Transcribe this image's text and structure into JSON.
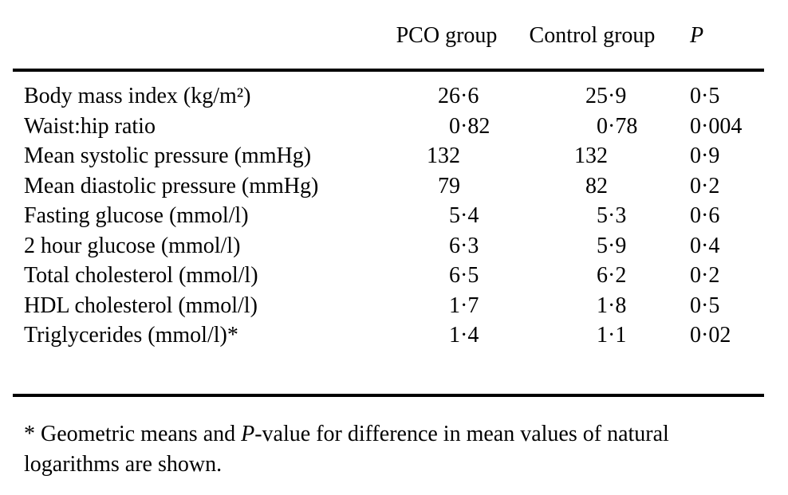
{
  "table": {
    "headers": {
      "pco": "PCO group",
      "ctrl": "Control group",
      "p": "P"
    },
    "rows": [
      {
        "label": "Body mass index (kg/m²)",
        "pco": {
          "int": "26",
          "frac": "·6"
        },
        "ctrl": {
          "int": "25",
          "frac": "·9"
        },
        "p": "0·5"
      },
      {
        "label": "Waist:hip ratio",
        "pco": {
          "int": "0",
          "frac": "·82"
        },
        "ctrl": {
          "int": "0",
          "frac": "·78"
        },
        "p": "0·004"
      },
      {
        "label": "Mean systolic pressure (mmHg)",
        "pco": {
          "int": "132",
          "frac": ""
        },
        "ctrl": {
          "int": "132",
          "frac": ""
        },
        "p": "0·9"
      },
      {
        "label": "Mean diastolic pressure (mmHg)",
        "pco": {
          "int": "79",
          "frac": ""
        },
        "ctrl": {
          "int": "82",
          "frac": ""
        },
        "p": "0·2"
      },
      {
        "label": "Fasting glucose (mmol/l)",
        "pco": {
          "int": "5",
          "frac": "·4"
        },
        "ctrl": {
          "int": "5",
          "frac": "·3"
        },
        "p": "0·6"
      },
      {
        "label": "2 hour glucose (mmol/l)",
        "pco": {
          "int": "6",
          "frac": "·3"
        },
        "ctrl": {
          "int": "5",
          "frac": "·9"
        },
        "p": "0·4"
      },
      {
        "label": "Total cholesterol (mmol/l)",
        "pco": {
          "int": "6",
          "frac": "·5"
        },
        "ctrl": {
          "int": "6",
          "frac": "·2"
        },
        "p": "0·2"
      },
      {
        "label": "HDL cholesterol (mmol/l)",
        "pco": {
          "int": "1",
          "frac": "·7"
        },
        "ctrl": {
          "int": "1",
          "frac": "·8"
        },
        "p": "0·5"
      },
      {
        "label": "Triglycerides (mmol/l)*",
        "pco": {
          "int": "1",
          "frac": "·4"
        },
        "ctrl": {
          "int": "1",
          "frac": "·1"
        },
        "p": "0·02"
      }
    ],
    "footnote": {
      "pre": "* Geometric means and ",
      "italic": "P",
      "post": "-value for difference in mean values of natural logarithms are shown."
    }
  },
  "colors": {
    "background": "#ffffff",
    "text": "#000000",
    "rule": "#000000"
  }
}
